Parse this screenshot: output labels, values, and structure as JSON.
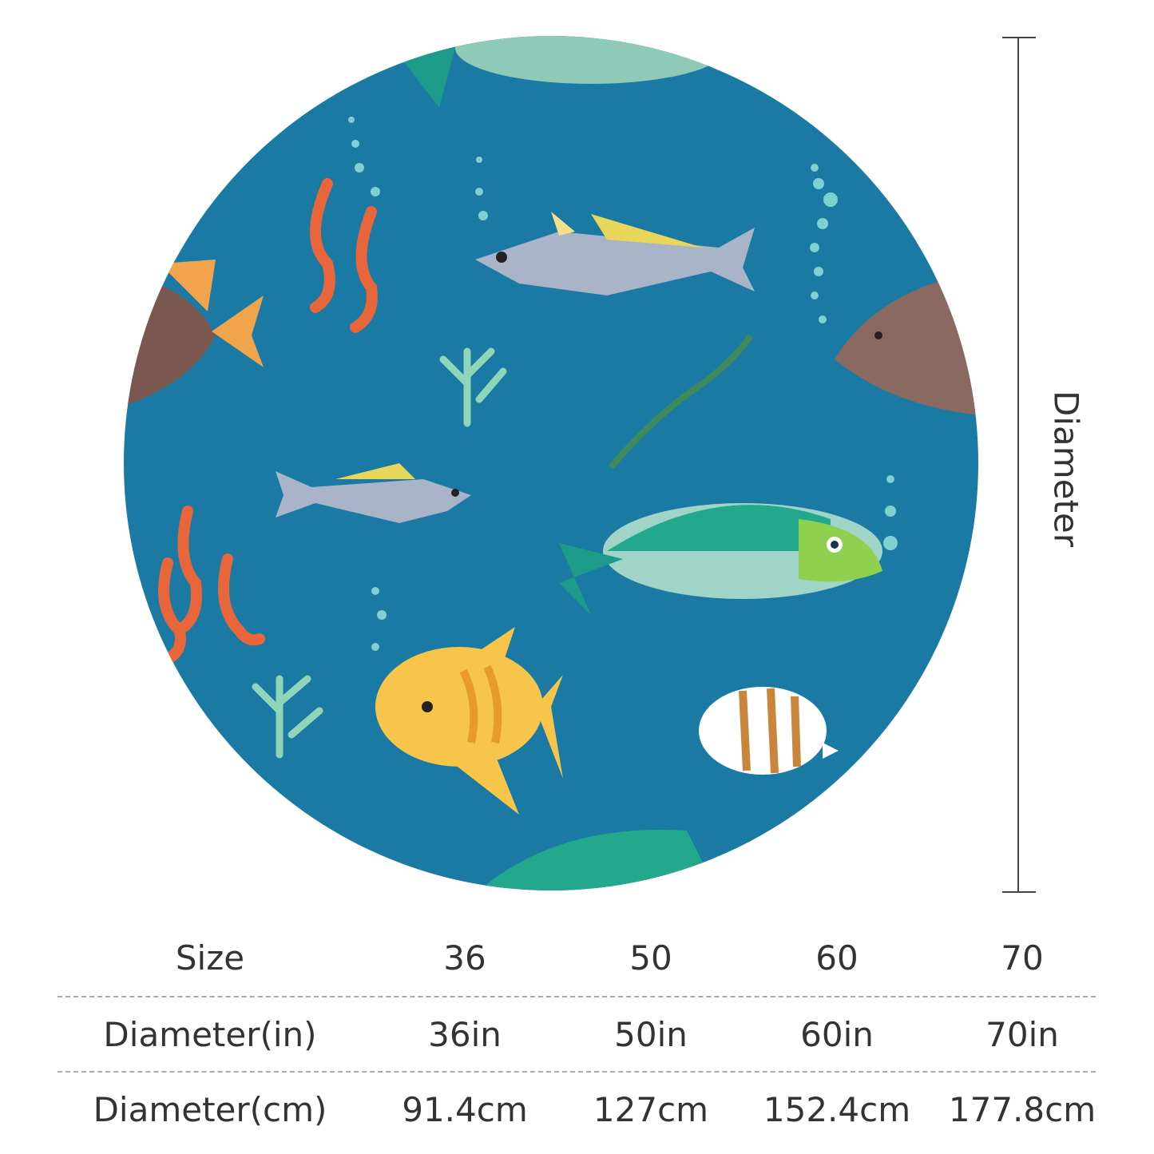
{
  "product_image": {
    "background_color": "#1a7aa3",
    "motif": "ocean fish, seahorses, coral and bubbles",
    "dimension_label": "Diameter"
  },
  "size_table": {
    "rows": [
      {
        "label": "Size",
        "values": [
          "36",
          "50",
          "60",
          "70"
        ]
      },
      {
        "label": "Diameter(in)",
        "values": [
          "36in",
          "50in",
          "60in",
          "70in"
        ]
      },
      {
        "label": "Diameter(cm)",
        "values": [
          "91.4cm",
          "127cm",
          "152.4cm",
          "177.8cm"
        ]
      }
    ]
  }
}
